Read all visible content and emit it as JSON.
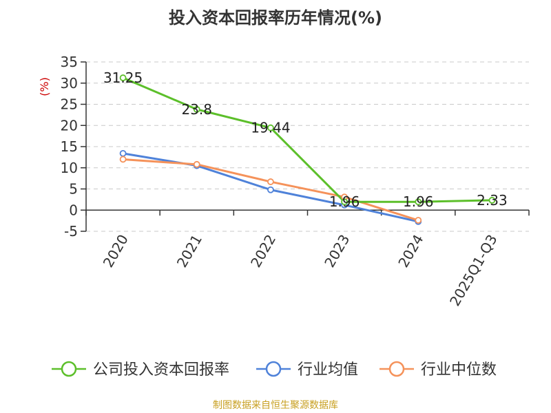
{
  "title": "投入资本回报率历年情况(%)",
  "source": "制图数据来自恒生聚源数据库",
  "chart_data": {
    "type": "line",
    "unit_label": "(%)",
    "categories": [
      "2020",
      "2021",
      "2022",
      "2023",
      "2024",
      "2025Q1-Q3"
    ],
    "ylim": [
      -5,
      35
    ],
    "yticks": [
      35,
      30,
      25,
      20,
      15,
      10,
      5,
      0,
      -5
    ],
    "grid": true,
    "legend_position": "bottom",
    "series": [
      {
        "name": "公司投入资本回报率",
        "color": "#5cbf2a",
        "values": [
          31.25,
          23.8,
          19.44,
          1.96,
          1.96,
          2.33
        ],
        "labels": [
          "31.25",
          "23.8",
          "19.44",
          "1.96",
          "1.96",
          "2.33"
        ]
      },
      {
        "name": "行业均值",
        "color": "#4f82d9",
        "values": [
          13.4,
          10.5,
          4.8,
          1.2,
          -2.7,
          null
        ]
      },
      {
        "name": "行业中位数",
        "color": "#f5925a",
        "values": [
          12.0,
          10.8,
          6.7,
          3.1,
          -2.4,
          null
        ]
      }
    ]
  }
}
